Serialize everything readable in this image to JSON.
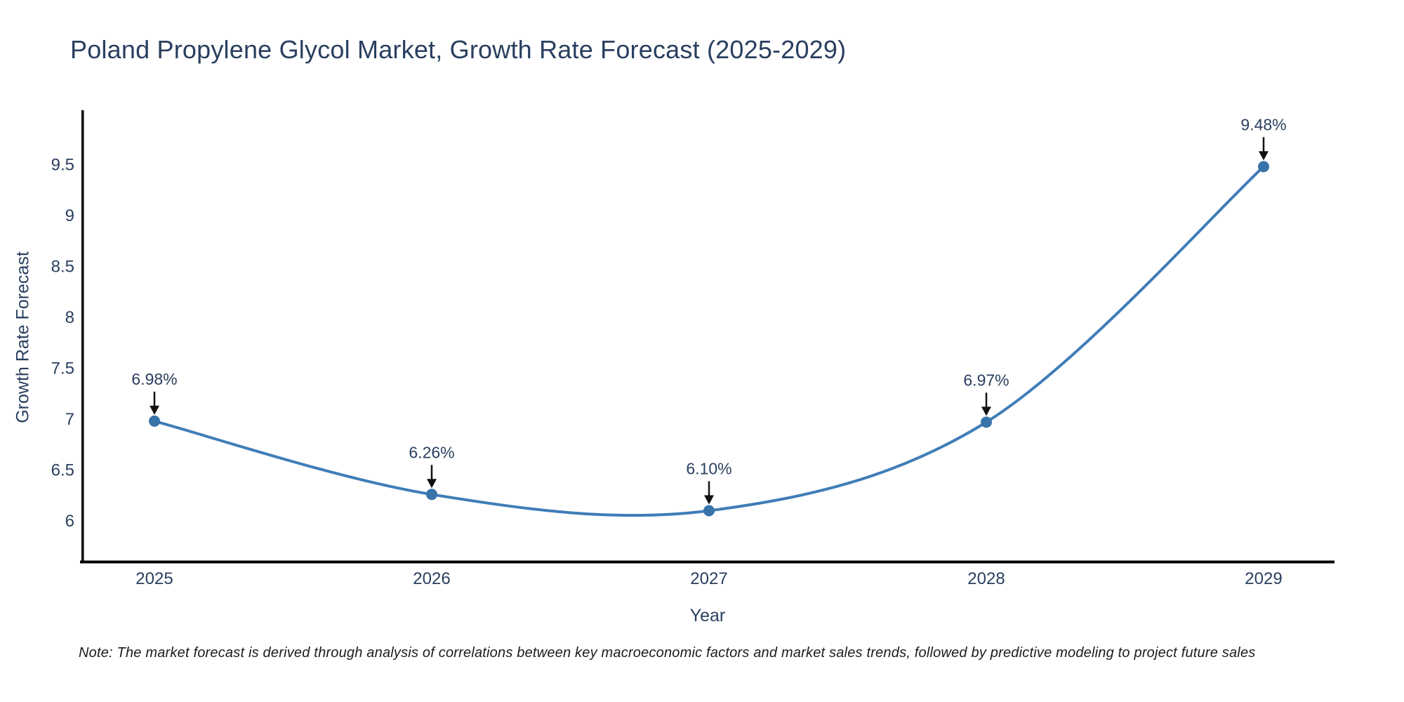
{
  "title": "Poland Propylene Glycol Market, Growth Rate Forecast (2025-2029)",
  "note": "Note: The market forecast is derived through analysis of correlations between key macroeconomic factors and market sales trends, followed by predictive modeling to project future sales",
  "chart_data": {
    "type": "line",
    "line_shape": "spline",
    "title": "Poland Propylene Glycol Market, Growth Rate Forecast (2025-2029)",
    "xlabel": "Year",
    "ylabel": "Growth Rate Forecast",
    "categories": [
      "2025",
      "2026",
      "2027",
      "2028",
      "2029"
    ],
    "series": [
      {
        "name": "Growth Rate Forecast",
        "values": [
          6.98,
          6.26,
          6.1,
          6.97,
          9.48
        ]
      }
    ],
    "point_labels": [
      "6.98%",
      "6.26%",
      "6.10%",
      "6.97%",
      "9.48%"
    ],
    "y_ticks": [
      6,
      6.5,
      7,
      7.5,
      8,
      8.5,
      9,
      9.5
    ],
    "ylim": [
      5.6,
      9.95
    ],
    "grid": false,
    "legend_position": "none",
    "markers": true,
    "annotation_arrows": true
  },
  "colors": {
    "line": "#3f7db7",
    "marker": "#3873a9",
    "axis": "#000000",
    "text": "#2a3f5f",
    "arrow": "#111111",
    "background": "#ffffff"
  }
}
